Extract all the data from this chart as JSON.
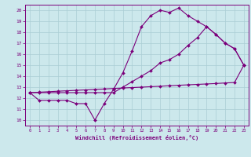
{
  "line1_x": [
    0,
    1,
    2,
    3,
    4,
    5,
    6,
    7,
    8,
    9,
    10,
    11,
    12,
    13,
    14,
    15,
    16,
    17,
    18,
    19,
    20,
    21,
    22,
    23
  ],
  "line1_y": [
    12.5,
    11.8,
    11.8,
    11.8,
    11.8,
    11.5,
    11.5,
    10.0,
    11.5,
    12.8,
    14.3,
    16.3,
    18.5,
    19.5,
    20.0,
    19.8,
    20.2,
    19.5,
    19.0,
    18.5,
    17.8,
    17.0,
    16.5,
    15.0
  ],
  "line2_x": [
    0,
    1,
    2,
    3,
    4,
    5,
    6,
    7,
    8,
    9,
    10,
    11,
    12,
    13,
    14,
    15,
    16,
    17,
    18,
    19,
    20,
    21,
    22,
    23
  ],
  "line2_y": [
    12.5,
    12.54,
    12.58,
    12.63,
    12.67,
    12.71,
    12.75,
    12.79,
    12.83,
    12.88,
    12.92,
    12.96,
    13.0,
    13.04,
    13.08,
    13.13,
    13.17,
    13.21,
    13.25,
    13.29,
    13.33,
    13.38,
    13.42,
    15.0
  ],
  "line3_x": [
    0,
    1,
    2,
    3,
    4,
    5,
    6,
    7,
    8,
    9,
    10,
    11,
    12,
    13,
    14,
    15,
    16,
    17,
    18,
    19,
    20,
    21,
    22,
    23
  ],
  "line3_y": [
    12.5,
    12.5,
    12.5,
    12.5,
    12.5,
    12.5,
    12.5,
    12.5,
    12.5,
    12.5,
    13.0,
    13.5,
    14.0,
    14.5,
    15.2,
    15.5,
    16.0,
    16.8,
    17.5,
    18.5,
    17.8,
    17.0,
    16.5,
    15.0
  ],
  "color": "#7b007b",
  "bg_color": "#cce8ec",
  "grid_color": "#aacdd4",
  "xlabel": "Windchill (Refroidissement éolien,°C)",
  "xlim": [
    -0.5,
    23.5
  ],
  "ylim": [
    9.5,
    20.5
  ],
  "xticks": [
    0,
    1,
    2,
    3,
    4,
    5,
    6,
    7,
    8,
    9,
    10,
    11,
    12,
    13,
    14,
    15,
    16,
    17,
    18,
    19,
    20,
    21,
    22,
    23
  ],
  "yticks": [
    10,
    11,
    12,
    13,
    14,
    15,
    16,
    17,
    18,
    19,
    20
  ],
  "marker": "D",
  "markersize": 2.0,
  "linewidth": 0.8
}
